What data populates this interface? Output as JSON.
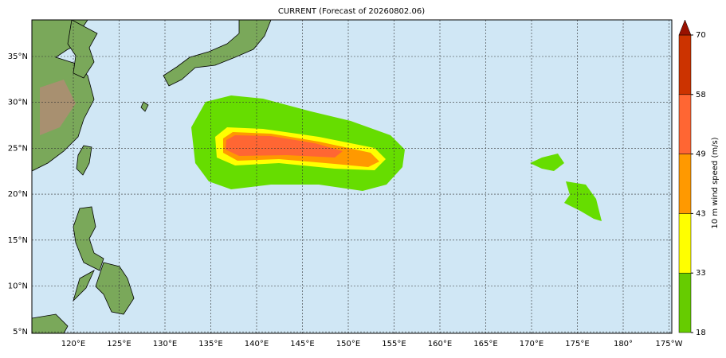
{
  "title": "CURRENT (Forecast of 20260802.06)",
  "map": {
    "lon_labels": [
      "120°E",
      "125°E",
      "130°E",
      "135°E",
      "140°E",
      "145°E",
      "150°E",
      "155°E",
      "160°E",
      "165°E",
      "170°E",
      "175°E",
      "180°",
      "175°W"
    ],
    "lat_labels": [
      "35°N",
      "30°N",
      "25°N",
      "20°N",
      "15°N",
      "10°N",
      "5°N"
    ]
  },
  "colorbar": {
    "label": "10 m wind speed (m/s)",
    "levels": [
      18,
      33,
      43,
      49,
      58,
      70
    ],
    "colors": [
      "#66cc00",
      "#ffff00",
      "#ff9900",
      "#ff6633",
      "#cc3300"
    ],
    "extend_color": "#991100"
  }
}
